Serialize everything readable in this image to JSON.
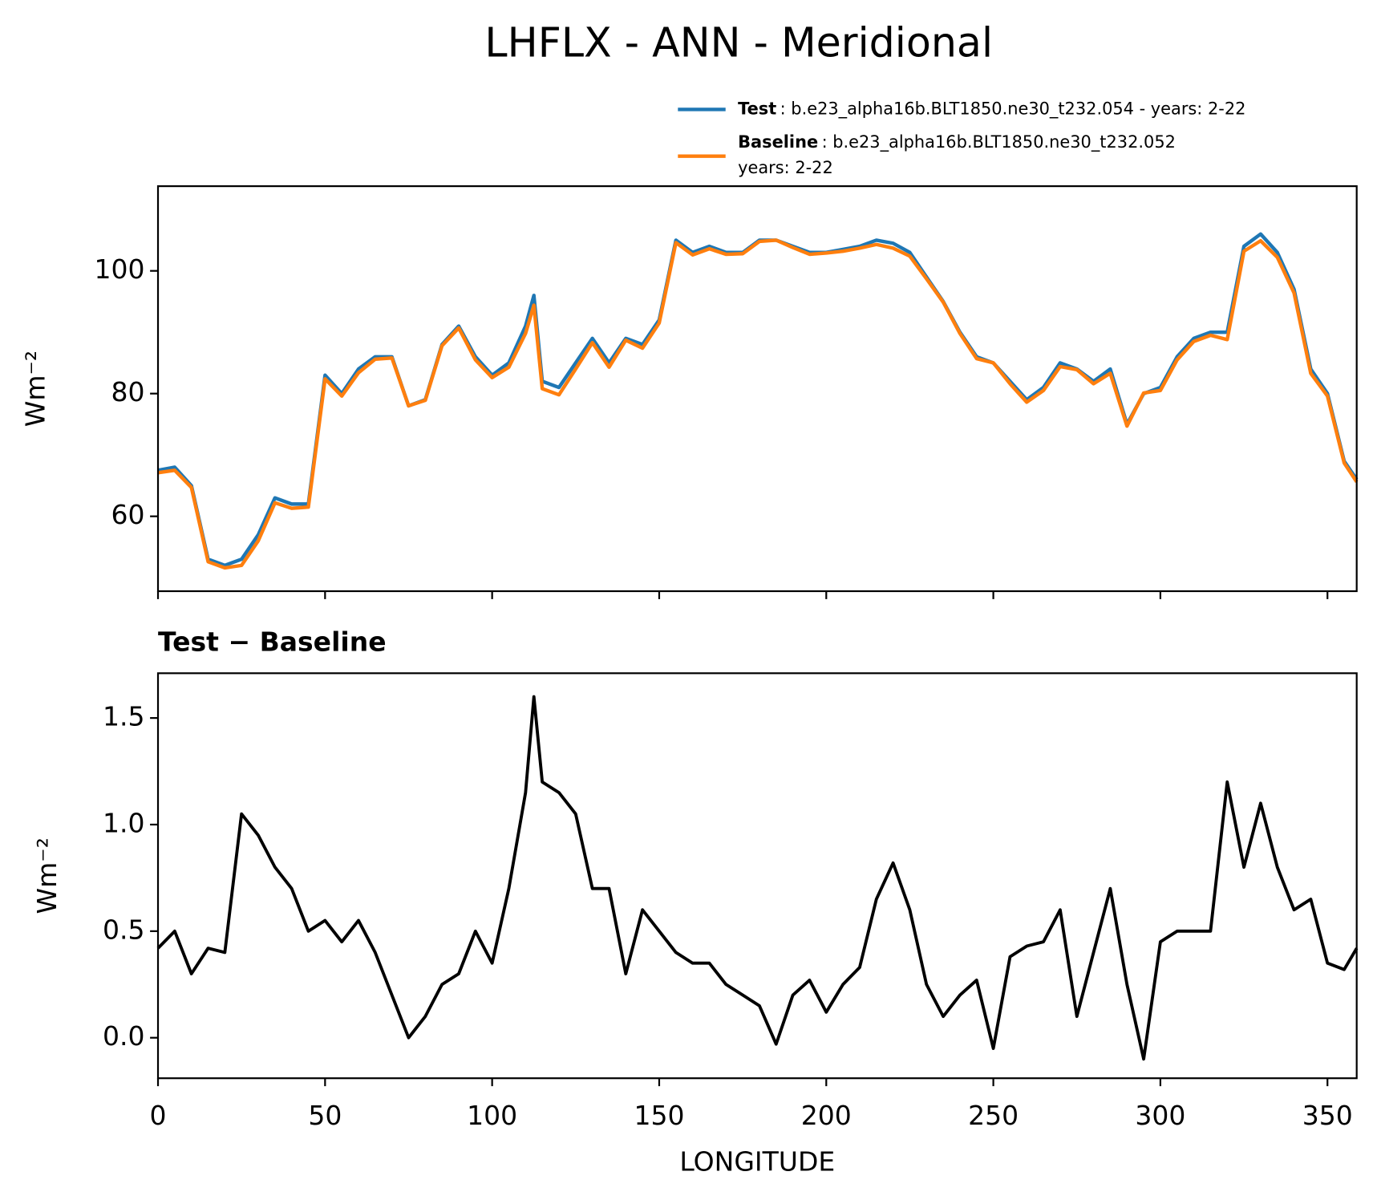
{
  "chart_data": [
    {
      "type": "line",
      "title": "LHFLX - ANN - Meridional",
      "ylabel": "Wm⁻²",
      "x": [
        0,
        5,
        10,
        15,
        20,
        25,
        30,
        35,
        40,
        45,
        50,
        55,
        60,
        65,
        70,
        75,
        80,
        85,
        90,
        95,
        100,
        105,
        110,
        112.5,
        115,
        120,
        125,
        130,
        135,
        140,
        145,
        150,
        155,
        160,
        165,
        170,
        175,
        180,
        185,
        190,
        195,
        200,
        205,
        210,
        215,
        220,
        225,
        230,
        235,
        240,
        245,
        250,
        255,
        260,
        265,
        270,
        275,
        280,
        285,
        290,
        295,
        300,
        305,
        310,
        315,
        320,
        325,
        330,
        335,
        340,
        345,
        350,
        355,
        358.75
      ],
      "series": [
        {
          "name": "Test",
          "label": ": b.e23_alpha16b.BLT1850.ne30_t232.054 - years: 2-22",
          "color": "#1f77b4",
          "values": [
            67.5,
            68,
            65,
            53,
            52,
            53,
            57,
            63,
            62,
            62,
            83,
            80,
            84,
            86,
            86,
            78,
            79,
            88,
            91,
            86,
            83,
            85,
            91,
            96,
            82,
            81,
            85,
            89,
            85,
            89,
            88,
            92,
            105,
            103,
            104,
            103,
            103,
            105,
            105,
            104,
            103,
            103,
            103.5,
            104,
            105,
            104.5,
            103,
            99,
            95,
            90,
            86,
            85,
            82,
            79,
            81,
            85,
            84,
            82,
            84,
            75,
            80,
            81,
            86,
            89,
            90,
            90,
            104,
            106,
            103,
            97,
            84,
            80,
            69,
            66
          ]
        },
        {
          "name": "Baseline",
          "label": ": b.e23_alpha16b.BLT1850.ne30_t232.052",
          "label2": "years: 2-22",
          "color": "#ff7f0e",
          "values": [
            67.1,
            67.5,
            64.7,
            52.6,
            51.6,
            52,
            56,
            62.2,
            61.3,
            61.5,
            82.4,
            79.6,
            83.4,
            85.6,
            85.8,
            78,
            78.9,
            87.8,
            90.7,
            85.5,
            82.6,
            84.3,
            89.8,
            94.4,
            80.8,
            79.8,
            84,
            88.3,
            84.3,
            88.7,
            87.4,
            91.5,
            104.6,
            102.6,
            103.6,
            102.7,
            102.8,
            104.8,
            105,
            103.8,
            102.7,
            102.9,
            103.2,
            103.7,
            104.3,
            103.7,
            102.4,
            98.7,
            94.9,
            89.8,
            85.7,
            85,
            81.6,
            78.6,
            80.5,
            84.4,
            83.9,
            81.6,
            83.3,
            74.7,
            80.1,
            80.5,
            85.5,
            88.5,
            89.5,
            88.8,
            103.2,
            104.9,
            102.2,
            96.4,
            83.3,
            79.6,
            68.7,
            65.6
          ]
        }
      ],
      "xlim": [
        0,
        358.75
      ],
      "xticks": [
        0,
        50,
        100,
        150,
        200,
        250,
        300,
        350
      ],
      "ylim": [
        47.8,
        113.8
      ],
      "yticks": [
        60,
        80,
        100
      ]
    },
    {
      "type": "line",
      "title": "Test − Baseline",
      "ylabel": "Wm⁻²",
      "xlabel": "LONGITUDE",
      "color": "#000000",
      "x": [
        0,
        5,
        10,
        15,
        20,
        25,
        30,
        35,
        40,
        45,
        50,
        55,
        60,
        65,
        70,
        75,
        80,
        85,
        90,
        95,
        100,
        105,
        110,
        112.5,
        115,
        120,
        125,
        130,
        135,
        140,
        145,
        150,
        155,
        160,
        165,
        170,
        175,
        180,
        185,
        190,
        195,
        200,
        205,
        210,
        215,
        220,
        225,
        230,
        235,
        240,
        245,
        250,
        255,
        260,
        265,
        270,
        275,
        280,
        285,
        290,
        295,
        300,
        305,
        310,
        315,
        320,
        325,
        330,
        335,
        340,
        345,
        350,
        355,
        358.75
      ],
      "values": [
        0.42,
        0.5,
        0.3,
        0.42,
        0.4,
        1.05,
        0.95,
        0.8,
        0.7,
        0.5,
        0.55,
        0.45,
        0.55,
        0.4,
        0.2,
        0.0,
        0.1,
        0.25,
        0.3,
        0.5,
        0.35,
        0.7,
        1.15,
        1.6,
        1.2,
        1.15,
        1.05,
        0.7,
        0.7,
        0.3,
        0.6,
        0.5,
        0.4,
        0.35,
        0.35,
        0.25,
        0.2,
        0.15,
        -0.03,
        0.2,
        0.27,
        0.12,
        0.25,
        0.33,
        0.65,
        0.82,
        0.6,
        0.25,
        0.1,
        0.2,
        0.27,
        -0.05,
        0.38,
        0.43,
        0.45,
        0.6,
        0.1,
        0.4,
        0.7,
        0.25,
        -0.1,
        0.45,
        0.5,
        0.5,
        0.5,
        1.2,
        0.8,
        1.1,
        0.8,
        0.6,
        0.65,
        0.35,
        0.32,
        0.42
      ],
      "xlim": [
        0,
        358.75
      ],
      "xticks": [
        0,
        50,
        100,
        150,
        200,
        250,
        300,
        350
      ],
      "ylim": [
        -0.19,
        1.71
      ],
      "yticks": [
        {
          "value": 0,
          "label": "0.0"
        },
        0.5,
        {
          "value": 1,
          "label": "1.0"
        },
        1.5
      ]
    }
  ]
}
